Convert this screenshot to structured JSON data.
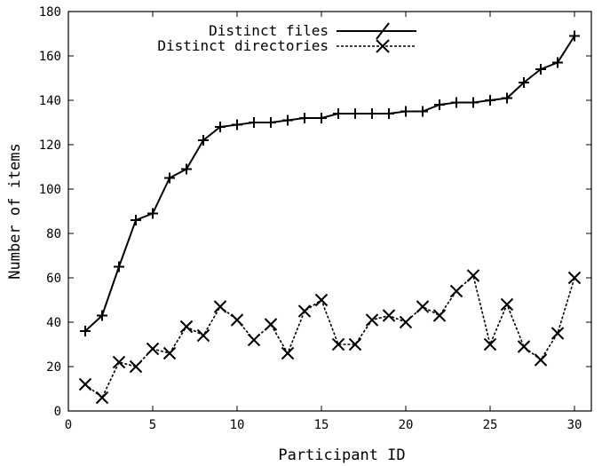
{
  "chart_data": {
    "type": "line",
    "title": "",
    "xlabel": "Participant ID",
    "ylabel": "Number of items",
    "xlim": [
      0,
      31
    ],
    "ylim": [
      0,
      180
    ],
    "xticks": [
      0,
      5,
      10,
      15,
      20,
      25,
      30
    ],
    "yticks": [
      0,
      20,
      40,
      60,
      80,
      100,
      120,
      140,
      160,
      180
    ],
    "grid": false,
    "legend_position": "top-center",
    "x": [
      1,
      2,
      3,
      4,
      5,
      6,
      7,
      8,
      9,
      10,
      11,
      12,
      13,
      14,
      15,
      16,
      17,
      18,
      19,
      20,
      21,
      22,
      23,
      24,
      25,
      26,
      27,
      28,
      29,
      30
    ],
    "series": [
      {
        "name": "Distinct files",
        "line_style": "solid",
        "marker": "plus",
        "color": "#000000",
        "values": [
          36,
          43,
          65,
          86,
          89,
          105,
          109,
          122,
          128,
          129,
          130,
          130,
          131,
          132,
          132,
          134,
          134,
          134,
          134,
          135,
          135,
          138,
          139,
          139,
          140,
          141,
          148,
          154,
          157,
          169
        ]
      },
      {
        "name": "Distinct directories",
        "line_style": "dotted",
        "marker": "cross",
        "color": "#000000",
        "values": [
          12,
          6,
          22,
          20,
          28,
          26,
          38,
          34,
          47,
          41,
          32,
          39,
          26,
          45,
          50,
          30,
          30,
          41,
          43,
          40,
          47,
          43,
          54,
          61,
          30,
          48,
          29,
          23,
          35,
          60
        ]
      }
    ]
  }
}
